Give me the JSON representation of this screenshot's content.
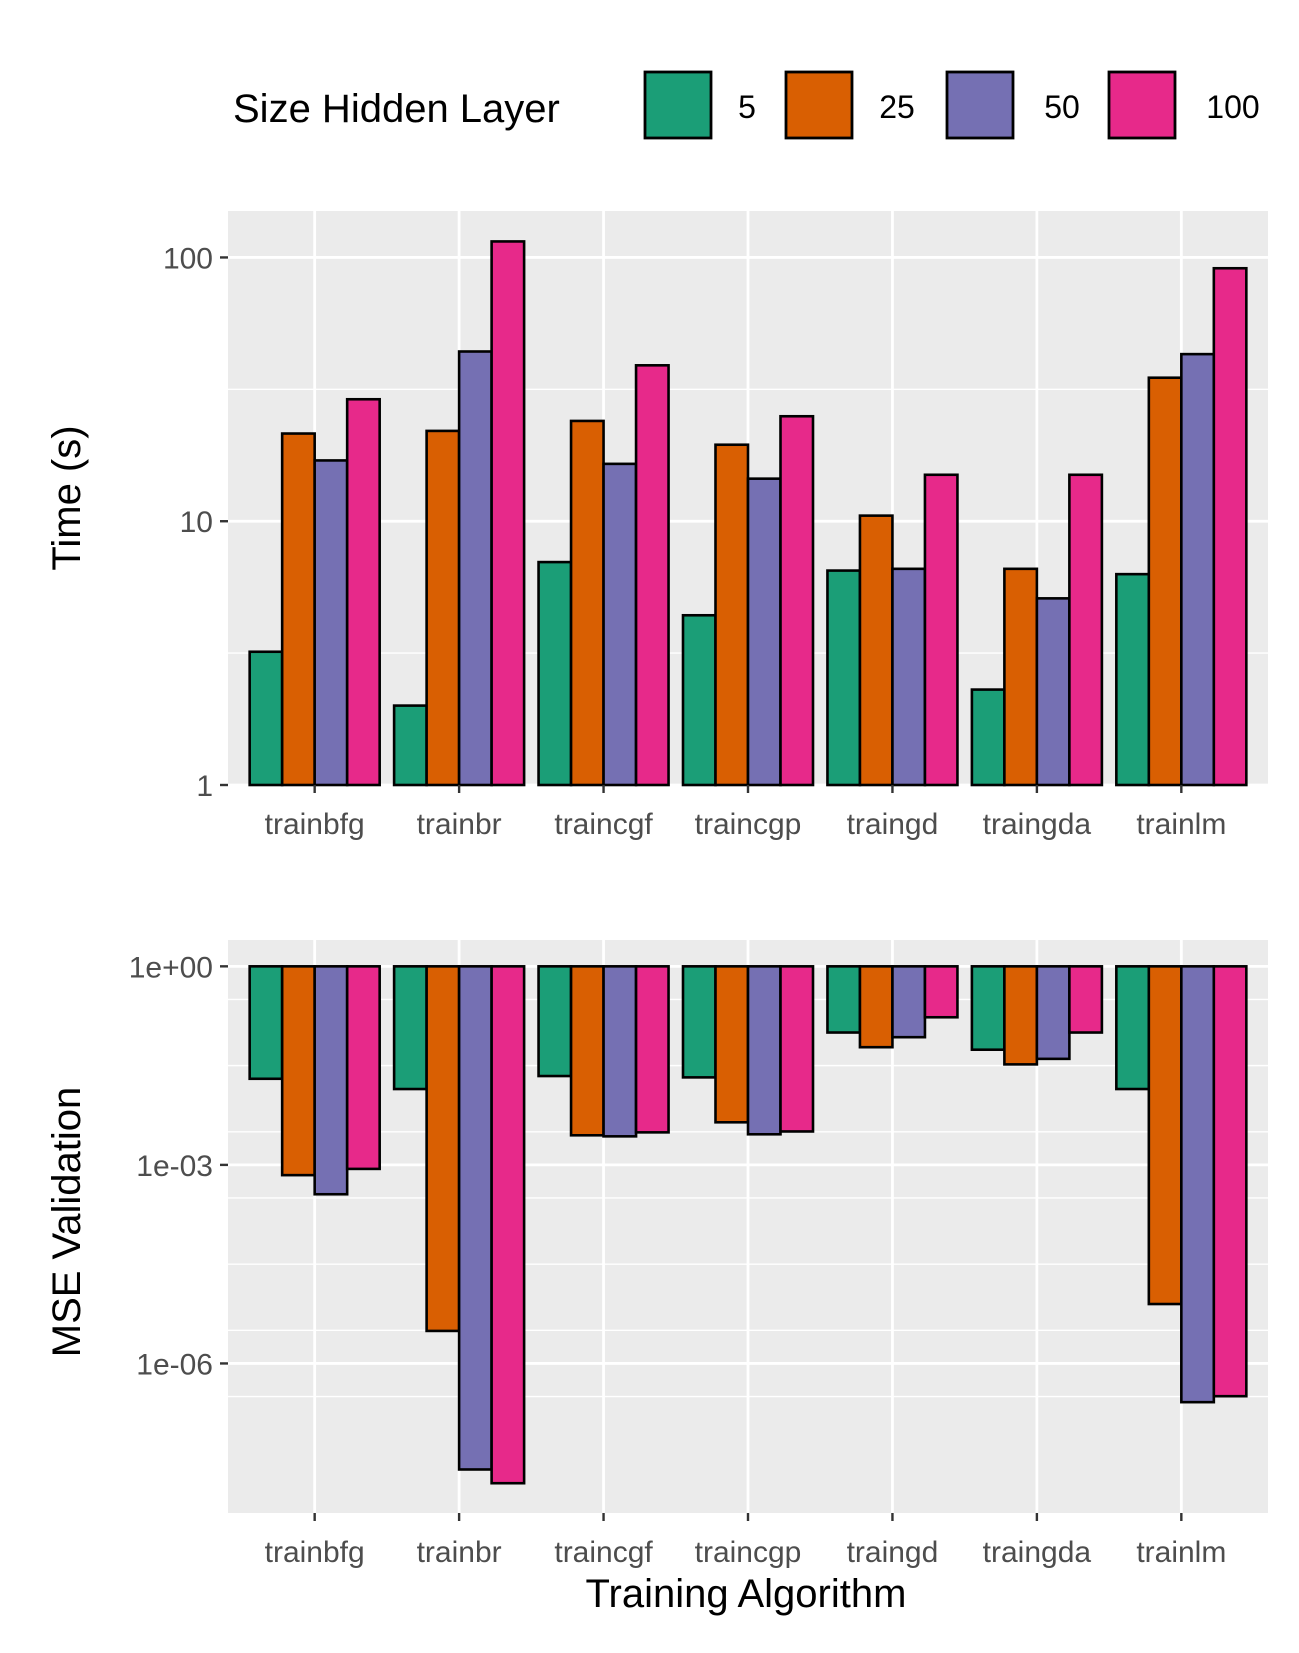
{
  "legend": {
    "title": "Size Hidden Layer",
    "position": "top"
  },
  "xlabel": "Training Algorithm",
  "colors": {
    "series": [
      "#1b9e77",
      "#d95f02",
      "#7570b3",
      "#e7298a"
    ],
    "panel_background": "#ebebeb",
    "grid": "#ffffff",
    "bar_outline": "#000000"
  },
  "chart_data": [
    {
      "type": "bar",
      "title": "",
      "ylabel": "Time (s)",
      "scale": "log10",
      "ylim": [
        1,
        150
      ],
      "yticks": [
        1,
        10,
        100
      ],
      "ytick_labels": [
        "1",
        "10",
        "100"
      ],
      "grid": true,
      "categories": [
        "trainbfg",
        "trainbr",
        "traincgf",
        "traincgp",
        "traingd",
        "traingda",
        "trainlm"
      ],
      "series": [
        {
          "name": "5",
          "values": [
            3.2,
            2.0,
            7.0,
            4.4,
            6.5,
            2.3,
            6.3
          ]
        },
        {
          "name": "25",
          "values": [
            21.5,
            22.0,
            24.0,
            19.5,
            10.5,
            6.6,
            35.0
          ]
        },
        {
          "name": "50",
          "values": [
            17.0,
            44.0,
            16.5,
            14.5,
            6.6,
            5.1,
            43.0
          ]
        },
        {
          "name": "100",
          "values": [
            29.0,
            115.0,
            39.0,
            25.0,
            15.0,
            15.0,
            91.0
          ]
        }
      ]
    },
    {
      "type": "bar",
      "title": "",
      "ylabel": "MSE Validation",
      "scale": "log10",
      "ylim": [
        5.5e-09,
        2.5
      ],
      "yticks": [
        1,
        0.001,
        1e-06
      ],
      "ytick_labels": [
        "1e+00",
        "1e-03",
        "1e-06"
      ],
      "grid": true,
      "categories": [
        "trainbfg",
        "trainbr",
        "traincgf",
        "traincgp",
        "traingd",
        "traingda",
        "trainlm"
      ],
      "series": [
        {
          "name": "5",
          "values": [
            0.02,
            0.014,
            0.022,
            0.021,
            0.1,
            0.055,
            0.014
          ]
        },
        {
          "name": "25",
          "values": [
            0.0007,
            3.1e-06,
            0.0028,
            0.0044,
            0.06,
            0.033,
            7.9e-06
          ]
        },
        {
          "name": "50",
          "values": [
            0.00036,
            2.5e-08,
            0.0027,
            0.0029,
            0.085,
            0.04,
            2.6e-07
          ]
        },
        {
          "name": "100",
          "values": [
            0.00087,
            1.55e-08,
            0.0031,
            0.0032,
            0.17,
            0.1,
            3.2e-07
          ]
        }
      ]
    }
  ]
}
